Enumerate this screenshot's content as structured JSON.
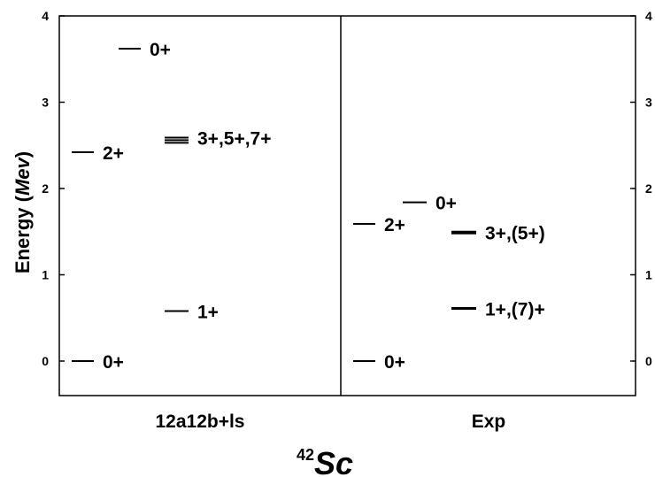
{
  "chart_data": {
    "type": "level-scheme",
    "ylabel_prefix": "Energy (",
    "ylabel_unit": "Mev",
    "ylabel_suffix": ")",
    "ylim": [
      -0.4,
      4.0
    ],
    "yticks": [
      0,
      1,
      2,
      3,
      4
    ],
    "panels": [
      {
        "name": "12a12b+ls",
        "levels": [
          {
            "energy": 0.0,
            "label": "0+",
            "column": 0,
            "thickness": 2
          },
          {
            "energy": 2.42,
            "label": "2+",
            "column": 0,
            "thickness": 2
          },
          {
            "energy": 3.62,
            "label": "0+",
            "column": 1,
            "thickness": 2
          },
          {
            "energy": 0.58,
            "label": "1+",
            "column": 2,
            "thickness": 2
          },
          {
            "energy": 2.53,
            "label": "",
            "column": 2,
            "thickness": 2
          },
          {
            "energy": 2.56,
            "label": "",
            "column": 2,
            "thickness": 2
          },
          {
            "energy": 2.59,
            "label": "3+,5+,7+",
            "column": 2,
            "thickness": 2
          }
        ]
      },
      {
        "name": "Exp",
        "levels": [
          {
            "energy": 0.0,
            "label": "0+",
            "column": 0,
            "thickness": 2
          },
          {
            "energy": 1.59,
            "label": "2+",
            "column": 0,
            "thickness": 2
          },
          {
            "energy": 1.84,
            "label": "0+",
            "column": 1,
            "thickness": 2
          },
          {
            "energy": 1.49,
            "label": "3+,(5+)",
            "column": 2,
            "thickness": 4
          },
          {
            "energy": 0.61,
            "label": "1+,(7)+",
            "column": 2,
            "thickness": 3
          }
        ]
      }
    ],
    "nucleus": {
      "mass": "42",
      "symbol": "Sc"
    }
  }
}
